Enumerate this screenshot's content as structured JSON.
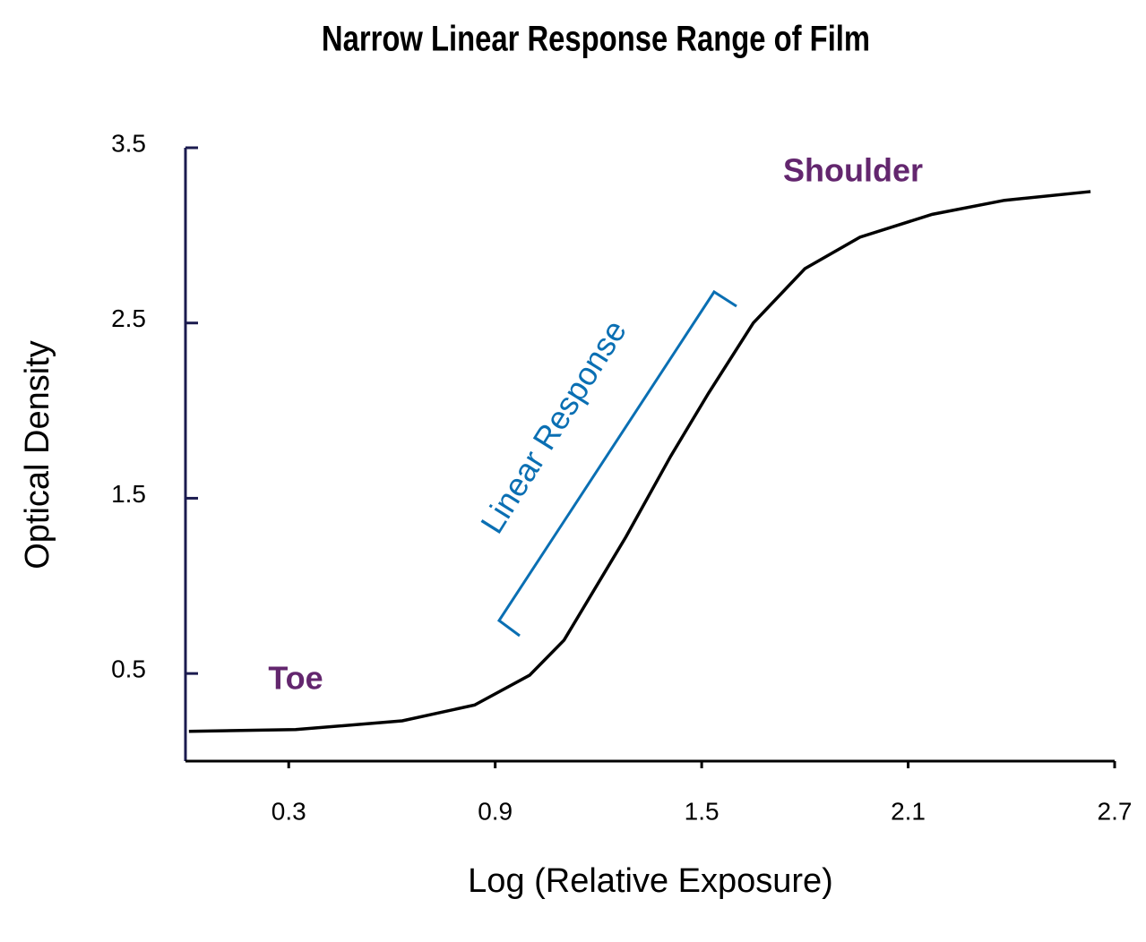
{
  "chart_data": {
    "type": "line",
    "title": "Narrow Linear Response Range of Film",
    "xlabel": "Log (Relative Exposure)",
    "ylabel": "Optical Density",
    "x": [
      0.01,
      0.32,
      0.63,
      0.84,
      1.0,
      1.1,
      1.28,
      1.41,
      1.52,
      1.65,
      1.8,
      1.96,
      2.17,
      2.38,
      2.63
    ],
    "series": [
      {
        "color": "#000000",
        "values": [
          0.17,
          0.18,
          0.23,
          0.32,
          0.49,
          0.69,
          1.28,
          1.74,
          2.1,
          2.5,
          2.81,
          2.99,
          3.12,
          3.2,
          3.25
        ]
      }
    ],
    "xlim": [
      0,
      2.7
    ],
    "xticks": [
      0.3,
      0.9,
      1.5,
      2.1,
      2.7
    ],
    "ylim": [
      0,
      3.5
    ],
    "yticks": [
      0.5,
      1.5,
      2.5,
      3.5
    ],
    "axis_color": "#1b1b4f",
    "annotations": [
      {
        "text": "Toe",
        "color": "#63266e"
      },
      {
        "text": "Shoulder",
        "color": "#63266e"
      },
      {
        "text": "Linear Response",
        "color": "#0a6fb3"
      }
    ]
  }
}
